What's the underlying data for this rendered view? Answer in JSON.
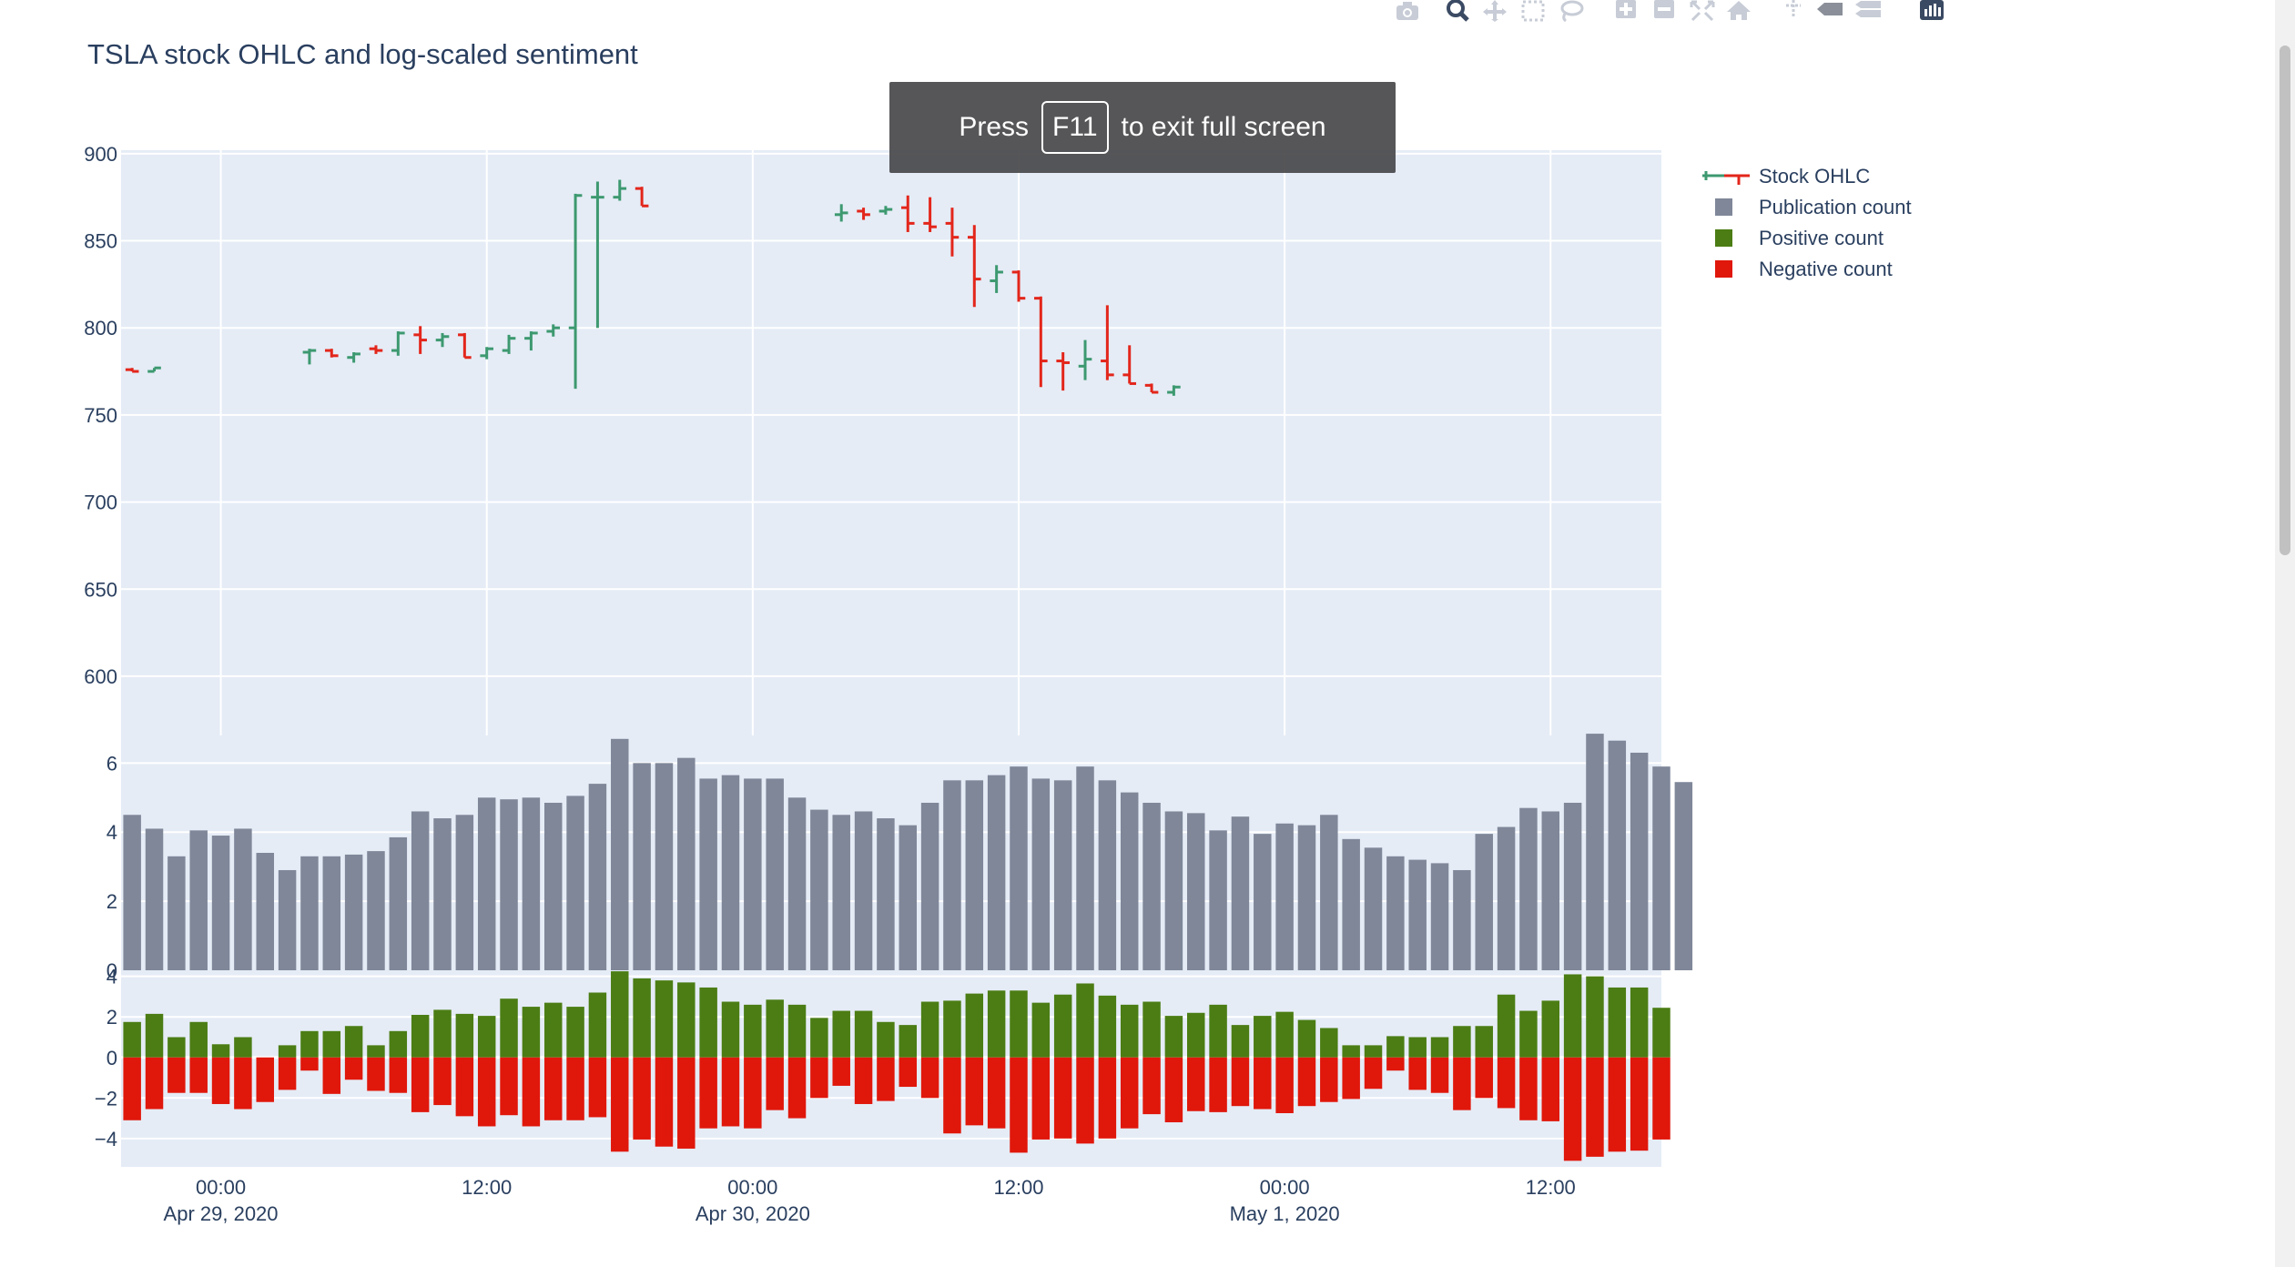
{
  "page": {
    "fullscreen_notice": {
      "press": "Press",
      "key": "F11",
      "rest": "to exit full screen"
    }
  },
  "modebar": {
    "icons": [
      "camera-icon",
      "zoom-icon",
      "pan-icon",
      "box-select-icon",
      "lasso-icon",
      "zoom-in-icon",
      "zoom-out-icon",
      "autoscale-icon",
      "reset-axes-icon",
      "spike-lines-icon",
      "hover-closest-icon",
      "hover-compare-icon",
      "plotly-logo-icon"
    ]
  },
  "colors": {
    "plot_bg": "#e5ecf6",
    "grid": "#ffffff",
    "ohlc_up": "#3d9970",
    "ohlc_down": "#e3261b",
    "publication": "#7f8799",
    "positive": "#4b7d14",
    "negative": "#e0170b",
    "axis_text": "#2a3f5f"
  },
  "chart_data": {
    "type": "ohlc+bar",
    "title": "TSLA stock OHLC and log-scaled sentiment",
    "x_axis": {
      "type": "date",
      "range": [
        "2020-04-28 19:30",
        "2020-05-01 17:00"
      ],
      "ticks": [
        {
          "value": "2020-04-29 00:00",
          "line1": "00:00",
          "line2": "Apr 29, 2020"
        },
        {
          "value": "2020-04-29 12:00",
          "line1": "12:00",
          "line2": ""
        },
        {
          "value": "2020-04-30 00:00",
          "line1": "00:00",
          "line2": "Apr 30, 2020"
        },
        {
          "value": "2020-04-30 12:00",
          "line1": "12:00",
          "line2": ""
        },
        {
          "value": "2020-05-01 00:00",
          "line1": "00:00",
          "line2": "May 1, 2020"
        },
        {
          "value": "2020-05-01 12:00",
          "line1": "12:00",
          "line2": ""
        }
      ]
    },
    "ohlc_panel": {
      "ylim": [
        566,
        902
      ],
      "yticks": [
        600,
        650,
        700,
        750,
        800,
        850,
        900
      ],
      "series_name": "Stock OHLC",
      "candles": [
        {
          "t": "2020-04-28 20:00",
          "o": 776,
          "h": 777,
          "l": 775,
          "c": 775
        },
        {
          "t": "2020-04-28 21:00",
          "o": 775,
          "h": 777,
          "l": 775,
          "c": 777
        },
        {
          "t": "2020-04-29 04:00",
          "o": 786,
          "h": 788,
          "l": 779,
          "c": 787
        },
        {
          "t": "2020-04-29 05:00",
          "o": 787,
          "h": 788,
          "l": 783,
          "c": 784
        },
        {
          "t": "2020-04-29 06:00",
          "o": 783,
          "h": 786,
          "l": 780,
          "c": 785
        },
        {
          "t": "2020-04-29 07:00",
          "o": 788,
          "h": 790,
          "l": 785,
          "c": 787
        },
        {
          "t": "2020-04-29 08:00",
          "o": 787,
          "h": 798,
          "l": 784,
          "c": 797
        },
        {
          "t": "2020-04-29 09:00",
          "o": 796,
          "h": 801,
          "l": 785,
          "c": 793
        },
        {
          "t": "2020-04-29 10:00",
          "o": 793,
          "h": 797,
          "l": 789,
          "c": 795
        },
        {
          "t": "2020-04-29 11:00",
          "o": 796,
          "h": 797,
          "l": 783,
          "c": 783
        },
        {
          "t": "2020-04-29 12:00",
          "o": 784,
          "h": 789,
          "l": 782,
          "c": 788
        },
        {
          "t": "2020-04-29 13:00",
          "o": 787,
          "h": 796,
          "l": 785,
          "c": 794
        },
        {
          "t": "2020-04-29 14:00",
          "o": 794,
          "h": 798,
          "l": 787,
          "c": 797
        },
        {
          "t": "2020-04-29 15:00",
          "o": 798,
          "h": 802,
          "l": 795,
          "c": 800
        },
        {
          "t": "2020-04-29 16:00",
          "o": 800,
          "h": 877,
          "l": 765,
          "c": 876
        },
        {
          "t": "2020-04-29 17:00",
          "o": 875,
          "h": 884,
          "l": 800,
          "c": 875
        },
        {
          "t": "2020-04-29 18:00",
          "o": 875,
          "h": 885,
          "l": 873,
          "c": 880
        },
        {
          "t": "2020-04-29 19:00",
          "o": 880,
          "h": 881,
          "l": 870,
          "c": 870
        },
        {
          "t": "2020-04-30 04:00",
          "o": 865,
          "h": 871,
          "l": 861,
          "c": 866
        },
        {
          "t": "2020-04-30 05:00",
          "o": 867,
          "h": 869,
          "l": 862,
          "c": 865
        },
        {
          "t": "2020-04-30 06:00",
          "o": 867,
          "h": 870,
          "l": 865,
          "c": 868
        },
        {
          "t": "2020-04-30 07:00",
          "o": 869,
          "h": 876,
          "l": 855,
          "c": 860
        },
        {
          "t": "2020-04-30 08:00",
          "o": 860,
          "h": 875,
          "l": 855,
          "c": 858
        },
        {
          "t": "2020-04-30 09:00",
          "o": 860,
          "h": 869,
          "l": 841,
          "c": 852
        },
        {
          "t": "2020-04-30 10:00",
          "o": 852,
          "h": 859,
          "l": 812,
          "c": 828
        },
        {
          "t": "2020-04-30 11:00",
          "o": 827,
          "h": 836,
          "l": 820,
          "c": 832
        },
        {
          "t": "2020-04-30 12:00",
          "o": 832,
          "h": 833,
          "l": 815,
          "c": 817
        },
        {
          "t": "2020-04-30 13:00",
          "o": 817,
          "h": 818,
          "l": 766,
          "c": 781
        },
        {
          "t": "2020-04-30 14:00",
          "o": 781,
          "h": 786,
          "l": 764,
          "c": 780
        },
        {
          "t": "2020-04-30 15:00",
          "o": 778,
          "h": 793,
          "l": 770,
          "c": 782
        },
        {
          "t": "2020-04-30 16:00",
          "o": 781,
          "h": 813,
          "l": 770,
          "c": 773
        },
        {
          "t": "2020-04-30 17:00",
          "o": 773,
          "h": 790,
          "l": 768,
          "c": 768
        },
        {
          "t": "2020-04-30 18:00",
          "o": 767,
          "h": 768,
          "l": 763,
          "c": 763
        },
        {
          "t": "2020-04-30 19:00",
          "o": 763,
          "h": 767,
          "l": 761,
          "c": 766
        }
      ]
    },
    "publication_panel": {
      "ylim": [
        0,
        6.8
      ],
      "yticks": [
        0,
        2,
        4,
        6
      ],
      "series_name": "Publication count",
      "start": "2020-04-28 20:00",
      "step_hours": 1,
      "values": [
        4.5,
        4.1,
        3.3,
        4.05,
        3.9,
        4.1,
        3.4,
        2.9,
        3.3,
        3.3,
        3.35,
        3.45,
        3.85,
        4.6,
        4.4,
        4.5,
        5.0,
        4.95,
        5.0,
        4.85,
        5.05,
        5.4,
        6.7,
        6.0,
        6.0,
        6.15,
        5.55,
        5.65,
        5.55,
        5.55,
        5.0,
        4.65,
        4.5,
        4.6,
        4.4,
        4.2,
        4.85,
        5.5,
        5.5,
        5.65,
        5.9,
        5.55,
        5.5,
        5.9,
        5.5,
        5.15,
        4.85,
        4.6,
        4.55,
        4.05,
        4.45,
        3.95,
        4.25,
        4.2,
        4.5,
        3.8,
        3.55,
        3.3,
        3.2,
        3.1,
        2.9,
        3.95,
        4.15,
        4.7,
        4.6,
        4.85,
        6.85,
        6.65,
        6.3,
        5.9,
        5.45
      ]
    },
    "sentiment_panel": {
      "ylim": [
        -5.4,
        4.3
      ],
      "yticks": [
        -4,
        -2,
        0,
        2,
        4
      ],
      "positive_name": "Positive count",
      "negative_name": "Negative count",
      "start": "2020-04-28 20:00",
      "step_hours": 1,
      "positive": [
        1.75,
        2.15,
        1.0,
        1.75,
        0.65,
        1.0,
        0.0,
        0.6,
        1.3,
        1.3,
        1.55,
        0.6,
        1.3,
        2.1,
        2.35,
        2.15,
        2.05,
        2.9,
        2.5,
        2.7,
        2.5,
        3.2,
        4.25,
        3.9,
        3.8,
        3.7,
        3.45,
        2.75,
        2.6,
        2.85,
        2.6,
        1.95,
        2.3,
        2.3,
        1.75,
        1.6,
        2.75,
        2.8,
        3.15,
        3.3,
        3.3,
        2.7,
        3.1,
        3.65,
        3.05,
        2.6,
        2.75,
        2.05,
        2.2,
        2.6,
        1.6,
        2.05,
        2.25,
        1.85,
        1.45,
        0.6,
        0.6,
        1.05,
        1.0,
        1.0,
        1.55,
        1.55,
        3.1,
        2.3,
        2.8,
        4.1,
        4.0,
        3.45,
        3.45,
        2.45
      ],
      "negative": [
        -3.1,
        -2.55,
        -1.75,
        -1.75,
        -2.3,
        -2.55,
        -2.2,
        -1.6,
        -0.65,
        -1.8,
        -1.1,
        -1.65,
        -1.75,
        -2.7,
        -2.35,
        -2.9,
        -3.4,
        -2.85,
        -3.4,
        -3.1,
        -3.1,
        -2.95,
        -4.65,
        -4.05,
        -4.4,
        -4.5,
        -3.5,
        -3.4,
        -3.5,
        -2.6,
        -3.0,
        -2.0,
        -1.4,
        -2.3,
        -2.15,
        -1.45,
        -2.0,
        -3.75,
        -3.35,
        -3.5,
        -4.7,
        -4.05,
        -4.0,
        -4.25,
        -4.0,
        -3.5,
        -2.8,
        -3.2,
        -2.65,
        -2.7,
        -2.4,
        -2.55,
        -2.75,
        -2.4,
        -2.2,
        -2.05,
        -1.55,
        -0.65,
        -1.6,
        -1.75,
        -2.6,
        -2.0,
        -2.5,
        -3.1,
        -3.15,
        -5.1,
        -4.9,
        -4.65,
        -4.6,
        -4.05
      ]
    },
    "legend": [
      {
        "name": "Stock OHLC",
        "kind": "ohlc"
      },
      {
        "name": "Publication count",
        "kind": "square",
        "color": "#7f8799"
      },
      {
        "name": "Positive count",
        "kind": "square",
        "color": "#4b7d14"
      },
      {
        "name": "Negative count",
        "kind": "square",
        "color": "#e0170b"
      }
    ]
  }
}
